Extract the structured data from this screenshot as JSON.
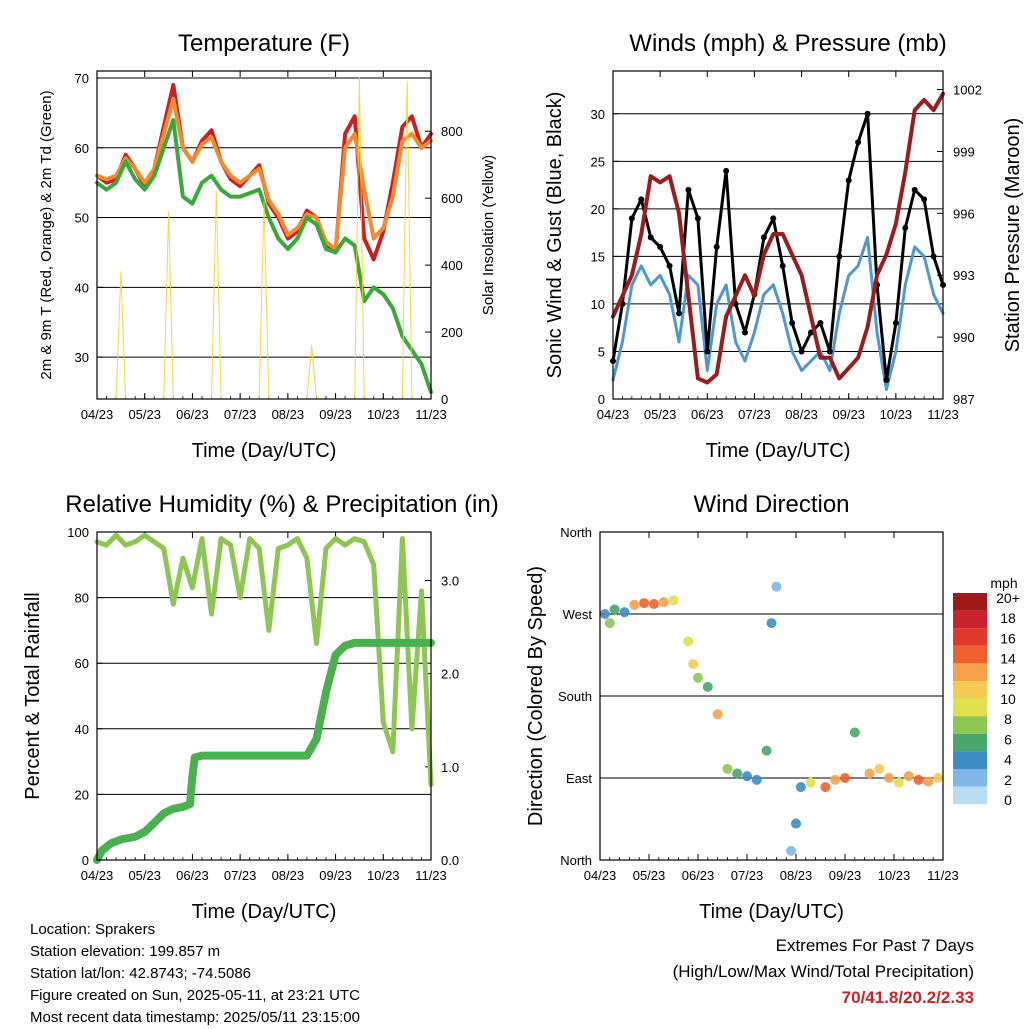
{
  "chart_data": [
    {
      "type": "line",
      "title": "Temperature (F)",
      "xlabel": "Time (Day/UTC)",
      "ylabel": "2m & 9m T (Red, Orange) & 2m Td (Green)",
      "y2label": "Solar Insolation (Yellow)",
      "x_ticks": [
        "04/23",
        "05/23",
        "06/23",
        "07/23",
        "08/23",
        "09/23",
        "10/23",
        "11/23"
      ],
      "y_ticks": [
        "30",
        "40",
        "50",
        "60",
        "70"
      ],
      "y2_ticks": [
        "0",
        "200",
        "400",
        "600",
        "800"
      ],
      "ylim": [
        24,
        71
      ],
      "y2lim": [
        0,
        980
      ],
      "grid": "horizontal",
      "series": [
        {
          "name": "2m T",
          "color": "#cc1f1f",
          "x": [
            0,
            0.2,
            0.4,
            0.6,
            0.8,
            1,
            1.2,
            1.4,
            1.6,
            1.8,
            2,
            2.2,
            2.4,
            2.6,
            2.8,
            3,
            3.2,
            3.4,
            3.6,
            3.8,
            4,
            4.2,
            4.4,
            4.6,
            4.8,
            5,
            5.2,
            5.4,
            5.6,
            5.8,
            6,
            6.2,
            6.4,
            6.6,
            6.8,
            7
          ],
          "values": [
            56,
            55,
            55.5,
            59,
            57,
            54.5,
            57,
            63,
            69,
            60,
            58,
            61,
            62.5,
            58,
            55.5,
            54.5,
            56,
            57.5,
            52,
            50,
            47,
            48,
            51,
            50,
            46,
            45,
            62,
            64.5,
            47,
            44,
            48,
            55,
            63,
            64.5,
            60,
            62
          ]
        },
        {
          "name": "9m T",
          "color": "#f28a30",
          "x": [
            0,
            0.2,
            0.4,
            0.6,
            0.8,
            1,
            1.2,
            1.4,
            1.6,
            1.8,
            2,
            2.2,
            2.4,
            2.6,
            2.8,
            3,
            3.2,
            3.4,
            3.6,
            3.8,
            4,
            4.2,
            4.4,
            4.6,
            4.8,
            5,
            5.2,
            5.4,
            5.6,
            5.8,
            6,
            6.2,
            6.4,
            6.6,
            6.8,
            7
          ],
          "values": [
            56,
            55.5,
            56,
            58.5,
            57,
            55,
            57,
            62,
            67,
            60,
            58,
            60.5,
            61.5,
            58,
            56,
            55,
            56,
            57,
            52.5,
            50.5,
            47.5,
            48.5,
            50.5,
            50,
            46.5,
            45.5,
            60,
            62,
            54,
            47,
            48.5,
            53,
            61,
            62,
            60,
            61
          ]
        },
        {
          "name": "2m Td",
          "color": "#3aa83a",
          "x": [
            0,
            0.2,
            0.4,
            0.6,
            0.8,
            1,
            1.2,
            1.4,
            1.6,
            1.8,
            2,
            2.2,
            2.4,
            2.6,
            2.8,
            3,
            3.2,
            3.4,
            3.6,
            3.8,
            4,
            4.2,
            4.4,
            4.6,
            4.8,
            5,
            5.2,
            5.4,
            5.6,
            5.8,
            6,
            6.2,
            6.4,
            6.6,
            6.8,
            7
          ],
          "values": [
            55,
            54,
            55,
            58,
            55.5,
            54,
            56,
            60,
            64,
            53,
            52,
            55,
            56,
            54,
            53,
            53,
            53.5,
            54,
            50,
            47,
            45.5,
            47,
            50,
            49,
            45.5,
            45,
            47,
            46,
            38,
            40,
            39,
            37,
            33,
            31,
            29,
            25
          ]
        },
        {
          "name": "Solar Insolation",
          "color": "#f4d23a",
          "axis": "y2",
          "x": [
            0,
            0.4,
            0.5,
            0.6,
            1,
            1.4,
            1.5,
            1.6,
            2,
            2.4,
            2.5,
            2.6,
            3,
            3.4,
            3.5,
            3.6,
            4,
            4.4,
            4.5,
            4.6,
            5,
            5.4,
            5.5,
            5.6,
            6,
            6.4,
            6.5,
            6.6,
            7
          ],
          "values": [
            0,
            0,
            380,
            0,
            0,
            0,
            560,
            0,
            0,
            0,
            620,
            0,
            0,
            0,
            590,
            0,
            0,
            0,
            160,
            0,
            0,
            0,
            960,
            0,
            0,
            0,
            950,
            0,
            0
          ]
        }
      ]
    },
    {
      "type": "line",
      "title": "Winds (mph) & Pressure (mb)",
      "xlabel": "Time (Day/UTC)",
      "ylabel": "Sonic Wind & Gust (Blue, Black)",
      "y2label": "Station Pressure (Maroon)",
      "x_ticks": [
        "04/23",
        "05/23",
        "06/23",
        "07/23",
        "08/23",
        "09/23",
        "10/23",
        "11/23"
      ],
      "y_ticks": [
        "0",
        "5",
        "10",
        "15",
        "20",
        "25",
        "30"
      ],
      "y2_ticks": [
        "987",
        "990",
        "993",
        "996",
        "999",
        "1002"
      ],
      "ylim": [
        0,
        34.5
      ],
      "y2lim": [
        987,
        1002.9
      ],
      "grid": "horizontal",
      "series": [
        {
          "name": "Sonic Wind",
          "color": "#4f97d1",
          "x": [
            0,
            0.2,
            0.4,
            0.6,
            0.8,
            1,
            1.2,
            1.4,
            1.6,
            1.8,
            2,
            2.2,
            2.4,
            2.6,
            2.8,
            3,
            3.2,
            3.4,
            3.6,
            3.8,
            4,
            4.2,
            4.4,
            4.6,
            4.8,
            5,
            5.2,
            5.4,
            5.6,
            5.8,
            6,
            6.2,
            6.4,
            6.6,
            6.8,
            7
          ],
          "values": [
            2,
            6,
            12,
            14,
            12,
            13,
            11,
            6,
            13,
            12,
            3,
            10,
            12,
            6,
            4,
            7,
            11,
            12,
            9,
            5,
            3,
            4,
            5,
            3,
            9,
            13,
            14,
            17,
            7,
            1,
            5,
            12,
            16,
            15,
            11,
            9
          ]
        },
        {
          "name": "Gust",
          "color": "#000000",
          "x": [
            0,
            0.2,
            0.4,
            0.6,
            0.8,
            1,
            1.2,
            1.4,
            1.6,
            1.8,
            2,
            2.2,
            2.4,
            2.6,
            2.8,
            3,
            3.2,
            3.4,
            3.6,
            3.8,
            4,
            4.2,
            4.4,
            4.6,
            4.8,
            5,
            5.2,
            5.4,
            5.6,
            5.8,
            6,
            6.2,
            6.4,
            6.6,
            6.8,
            7
          ],
          "values": [
            4,
            10,
            19,
            21,
            17,
            16,
            14,
            9,
            22,
            19,
            5,
            16,
            24,
            10,
            7,
            11,
            17,
            19,
            14,
            8,
            5,
            7,
            8,
            5,
            15,
            23,
            27,
            30,
            12,
            2,
            8,
            18,
            22,
            21,
            15,
            12
          ]
        },
        {
          "name": "Station Pressure",
          "color": "#9b1c1c",
          "axis": "y2",
          "x": [
            0,
            0.2,
            0.4,
            0.6,
            0.8,
            1,
            1.2,
            1.4,
            1.6,
            1.8,
            2,
            2.2,
            2.4,
            2.6,
            2.8,
            3,
            3.2,
            3.4,
            3.6,
            3.8,
            4,
            4.2,
            4.4,
            4.6,
            4.8,
            5,
            5.2,
            5.4,
            5.6,
            5.8,
            6,
            6.2,
            6.4,
            6.6,
            6.8,
            7
          ],
          "values": [
            991,
            992,
            993,
            995,
            997.8,
            997.5,
            997.8,
            996,
            992,
            988,
            987.8,
            988.2,
            991,
            992,
            993,
            992,
            994,
            995,
            995,
            994,
            993,
            991,
            989,
            989,
            988,
            988.5,
            989,
            990.5,
            993,
            994,
            995.5,
            998,
            1001,
            1001.5,
            1001,
            1001.8
          ]
        }
      ]
    },
    {
      "type": "line",
      "title": "Relative Humidity (%) & Precipitation (in)",
      "xlabel": "Time (Day/UTC)",
      "ylabel": "Percent & Total Rainfall",
      "x_ticks": [
        "04/23",
        "05/23",
        "06/23",
        "07/23",
        "08/23",
        "09/23",
        "10/23",
        "11/23"
      ],
      "y_ticks": [
        "0",
        "20",
        "40",
        "60",
        "80",
        "100"
      ],
      "y2_ticks": [
        "0.0",
        "1.0",
        "2.0",
        "3.0"
      ],
      "ylim": [
        0,
        100
      ],
      "y2lim": [
        0,
        3.52
      ],
      "grid": "horizontal",
      "series": [
        {
          "name": "Relative Humidity",
          "color": "#8dc653",
          "x": [
            0,
            0.2,
            0.4,
            0.6,
            0.8,
            1,
            1.2,
            1.4,
            1.6,
            1.8,
            2,
            2.2,
            2.4,
            2.6,
            2.8,
            3,
            3.2,
            3.4,
            3.6,
            3.8,
            4,
            4.2,
            4.4,
            4.6,
            4.8,
            5,
            5.2,
            5.4,
            5.6,
            5.8,
            6,
            6.2,
            6.4,
            6.6,
            6.8,
            7
          ],
          "values": [
            97,
            96,
            99,
            96,
            97,
            99,
            97,
            95,
            78,
            92,
            83,
            98,
            75,
            98,
            96,
            80,
            98,
            95,
            70,
            95,
            96,
            98,
            92,
            66,
            95,
            98,
            96,
            98,
            97,
            90,
            42,
            33,
            98,
            40,
            82,
            23
          ]
        },
        {
          "name": "Total Precipitation",
          "color": "#4bb04f",
          "axis": "y2",
          "x": [
            0,
            0.1,
            0.3,
            0.5,
            0.8,
            1,
            1.2,
            1.4,
            1.6,
            1.8,
            1.95,
            2,
            2.05,
            2.2,
            2.4,
            2.6,
            2.8,
            3,
            3.2,
            3.4,
            3.6,
            3.8,
            4,
            4.2,
            4.4,
            4.6,
            4.8,
            5,
            5.2,
            5.4,
            5.6,
            5.8,
            6,
            6.2,
            6.4,
            6.6,
            6.8,
            7
          ],
          "values": [
            0,
            0.1,
            0.18,
            0.22,
            0.25,
            0.3,
            0.4,
            0.5,
            0.55,
            0.57,
            0.6,
            0.9,
            1.1,
            1.12,
            1.12,
            1.12,
            1.12,
            1.12,
            1.12,
            1.12,
            1.12,
            1.12,
            1.12,
            1.12,
            1.12,
            1.3,
            1.8,
            2.2,
            2.3,
            2.33,
            2.33,
            2.33,
            2.33,
            2.33,
            2.33,
            2.33,
            2.33,
            2.33
          ]
        }
      ]
    },
    {
      "type": "scatter",
      "title": "Wind Direction",
      "xlabel": "Time (Day/UTC)",
      "ylabel": "Direction (Colored By Speed)",
      "x_ticks": [
        "04/23",
        "05/23",
        "06/23",
        "07/23",
        "08/23",
        "09/23",
        "10/23",
        "11/23"
      ],
      "y_ticks": [
        "North",
        "East",
        "South",
        "West",
        "North"
      ],
      "ylim": [
        0,
        360
      ],
      "grid": "horizontal",
      "legend_title": "mph",
      "legend_labels": [
        "20+",
        "18",
        "16",
        "14",
        "12",
        "10",
        "8",
        "6",
        "4",
        "2",
        "0"
      ],
      "legend_colors": [
        "#9e1a1a",
        "#c8232c",
        "#e0392b",
        "#f0602e",
        "#f6a04a",
        "#f2cb53",
        "#e0e04d",
        "#8dc653",
        "#4aa66d",
        "#3d8cc4",
        "#7fb8e6",
        "#b9def3"
      ],
      "legend_position": "right",
      "points": [
        {
          "x": 0.1,
          "y": 270,
          "s": 4
        },
        {
          "x": 0.3,
          "y": 275,
          "s": 6
        },
        {
          "x": 0.5,
          "y": 272,
          "s": 3
        },
        {
          "x": 0.2,
          "y": 260,
          "s": 8
        },
        {
          "x": 0.7,
          "y": 280,
          "s": 14
        },
        {
          "x": 0.9,
          "y": 282,
          "s": 16
        },
        {
          "x": 1.1,
          "y": 281,
          "s": 15
        },
        {
          "x": 1.3,
          "y": 283,
          "s": 13
        },
        {
          "x": 1.5,
          "y": 285,
          "s": 10
        },
        {
          "x": 1.8,
          "y": 240,
          "s": 9
        },
        {
          "x": 1.9,
          "y": 215,
          "s": 12
        },
        {
          "x": 2.0,
          "y": 200,
          "s": 8
        },
        {
          "x": 2.2,
          "y": 190,
          "s": 5
        },
        {
          "x": 2.4,
          "y": 160,
          "s": 14
        },
        {
          "x": 2.6,
          "y": 100,
          "s": 8
        },
        {
          "x": 2.8,
          "y": 95,
          "s": 6
        },
        {
          "x": 3.0,
          "y": 92,
          "s": 4
        },
        {
          "x": 3.2,
          "y": 88,
          "s": 3
        },
        {
          "x": 3.4,
          "y": 120,
          "s": 5
        },
        {
          "x": 3.5,
          "y": 260,
          "s": 4
        },
        {
          "x": 3.6,
          "y": 300,
          "s": 2
        },
        {
          "x": 3.9,
          "y": 10,
          "s": 2
        },
        {
          "x": 4.0,
          "y": 40,
          "s": 3
        },
        {
          "x": 4.1,
          "y": 80,
          "s": 4
        },
        {
          "x": 4.3,
          "y": 85,
          "s": 10
        },
        {
          "x": 4.6,
          "y": 80,
          "s": 15
        },
        {
          "x": 4.8,
          "y": 88,
          "s": 13
        },
        {
          "x": 5.0,
          "y": 90,
          "s": 16
        },
        {
          "x": 5.2,
          "y": 140,
          "s": 6
        },
        {
          "x": 5.5,
          "y": 95,
          "s": 14
        },
        {
          "x": 5.7,
          "y": 100,
          "s": 12
        },
        {
          "x": 5.9,
          "y": 90,
          "s": 13
        },
        {
          "x": 6.1,
          "y": 85,
          "s": 10
        },
        {
          "x": 6.3,
          "y": 92,
          "s": 14
        },
        {
          "x": 6.5,
          "y": 88,
          "s": 16
        },
        {
          "x": 6.7,
          "y": 86,
          "s": 14
        },
        {
          "x": 6.9,
          "y": 90,
          "s": 12
        }
      ]
    }
  ],
  "info": {
    "location": "Location: Sprakers",
    "elevation": "Station elevation: 199.857 m",
    "latlon": "Station lat/lon: 42.8743; -74.5086",
    "created": "Figure created on Sun, 2025-05-11, at 23:21 UTC",
    "latest": "Most recent data timestamp: 2025/05/11 23:15:00"
  },
  "extremes": {
    "title": "Extremes For Past 7 Days",
    "subtitle": "(High/Low/Max Wind/Total Precipitation)",
    "values": "70/41.8/20.2/2.33"
  }
}
